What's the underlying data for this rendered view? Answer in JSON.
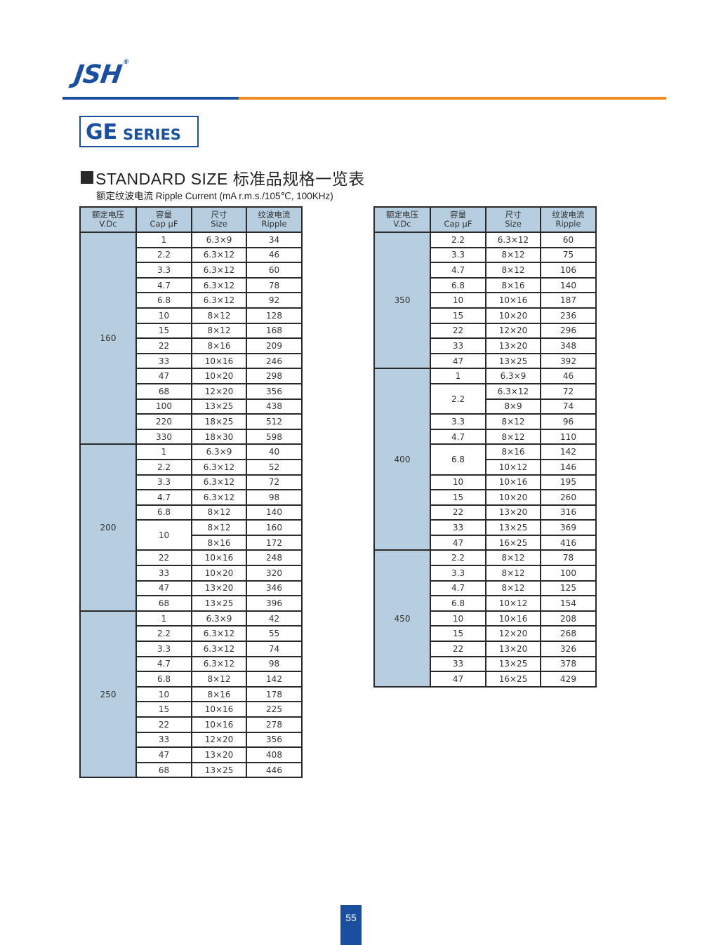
{
  "brand": {
    "logo": "JSH",
    "registered": "®"
  },
  "colors": {
    "brand_blue": "#1a4fa0",
    "accent_orange": "#f08a1c",
    "cell_fill": "#b6cedf"
  },
  "series": {
    "main": "GE",
    "suffix": "SERIES"
  },
  "heading": {
    "title": "STANDARD SIZE 标准品规格一览表",
    "subtitle": "额定纹波电流  Ripple Current (mA r.m.s./105℃, 100KHz)"
  },
  "headers": [
    {
      "cn": "额定电压",
      "en": "V.Dc"
    },
    {
      "cn": "容量",
      "en": "Cap μF"
    },
    {
      "cn": "尺寸",
      "en": "Size"
    },
    {
      "cn": "纹波电流",
      "en": "Ripple"
    }
  ],
  "tables": [
    {
      "groups": [
        {
          "voltage": "160",
          "caps": [
            {
              "cap": "1",
              "items": [
                {
                  "size": "6.3×9",
                  "ripple": "34"
                }
              ]
            },
            {
              "cap": "2.2",
              "items": [
                {
                  "size": "6.3×12",
                  "ripple": "46"
                }
              ]
            },
            {
              "cap": "3.3",
              "items": [
                {
                  "size": "6.3×12",
                  "ripple": "60"
                }
              ]
            },
            {
              "cap": "4.7",
              "items": [
                {
                  "size": "6.3×12",
                  "ripple": "78"
                }
              ]
            },
            {
              "cap": "6.8",
              "items": [
                {
                  "size": "6.3×12",
                  "ripple": "92"
                }
              ]
            },
            {
              "cap": "10",
              "items": [
                {
                  "size": "8×12",
                  "ripple": "128"
                }
              ]
            },
            {
              "cap": "15",
              "items": [
                {
                  "size": "8×12",
                  "ripple": "168"
                }
              ]
            },
            {
              "cap": "22",
              "items": [
                {
                  "size": "8×16",
                  "ripple": "209"
                }
              ]
            },
            {
              "cap": "33",
              "items": [
                {
                  "size": "10×16",
                  "ripple": "246"
                }
              ]
            },
            {
              "cap": "47",
              "items": [
                {
                  "size": "10×20",
                  "ripple": "298"
                }
              ]
            },
            {
              "cap": "68",
              "items": [
                {
                  "size": "12×20",
                  "ripple": "356"
                }
              ]
            },
            {
              "cap": "100",
              "items": [
                {
                  "size": "13×25",
                  "ripple": "438"
                }
              ]
            },
            {
              "cap": "220",
              "items": [
                {
                  "size": "18×25",
                  "ripple": "512"
                }
              ]
            },
            {
              "cap": "330",
              "items": [
                {
                  "size": "18×30",
                  "ripple": "598"
                }
              ]
            }
          ]
        },
        {
          "voltage": "200",
          "caps": [
            {
              "cap": "1",
              "items": [
                {
                  "size": "6.3×9",
                  "ripple": "40"
                }
              ]
            },
            {
              "cap": "2.2",
              "items": [
                {
                  "size": "6.3×12",
                  "ripple": "52"
                }
              ]
            },
            {
              "cap": "3.3",
              "items": [
                {
                  "size": "6.3×12",
                  "ripple": "72"
                }
              ]
            },
            {
              "cap": "4.7",
              "items": [
                {
                  "size": "6.3×12",
                  "ripple": "98"
                }
              ]
            },
            {
              "cap": "6.8",
              "items": [
                {
                  "size": "8×12",
                  "ripple": "140"
                }
              ]
            },
            {
              "cap": "10",
              "items": [
                {
                  "size": "8×12",
                  "ripple": "160"
                },
                {
                  "size": "8×16",
                  "ripple": "172"
                }
              ]
            },
            {
              "cap": "22",
              "items": [
                {
                  "size": "10×16",
                  "ripple": "248"
                }
              ]
            },
            {
              "cap": "33",
              "items": [
                {
                  "size": "10×20",
                  "ripple": "320"
                }
              ]
            },
            {
              "cap": "47",
              "items": [
                {
                  "size": "13×20",
                  "ripple": "346"
                }
              ]
            },
            {
              "cap": "68",
              "items": [
                {
                  "size": "13×25",
                  "ripple": "396"
                }
              ]
            }
          ]
        },
        {
          "voltage": "250",
          "caps": [
            {
              "cap": "1",
              "items": [
                {
                  "size": "6.3×9",
                  "ripple": "42"
                }
              ]
            },
            {
              "cap": "2.2",
              "items": [
                {
                  "size": "6.3×12",
                  "ripple": "55"
                }
              ]
            },
            {
              "cap": "3.3",
              "items": [
                {
                  "size": "6.3×12",
                  "ripple": "74"
                }
              ]
            },
            {
              "cap": "4.7",
              "items": [
                {
                  "size": "6.3×12",
                  "ripple": "98"
                }
              ]
            },
            {
              "cap": "6.8",
              "items": [
                {
                  "size": "8×12",
                  "ripple": "142"
                }
              ]
            },
            {
              "cap": "10",
              "items": [
                {
                  "size": "8×16",
                  "ripple": "178"
                }
              ]
            },
            {
              "cap": "15",
              "items": [
                {
                  "size": "10×16",
                  "ripple": "225"
                }
              ]
            },
            {
              "cap": "22",
              "items": [
                {
                  "size": "10×16",
                  "ripple": "278"
                }
              ]
            },
            {
              "cap": "33",
              "items": [
                {
                  "size": "12×20",
                  "ripple": "356"
                }
              ]
            },
            {
              "cap": "47",
              "items": [
                {
                  "size": "13×20",
                  "ripple": "408"
                }
              ]
            },
            {
              "cap": "68",
              "items": [
                {
                  "size": "13×25",
                  "ripple": "446"
                }
              ]
            }
          ]
        }
      ]
    },
    {
      "groups": [
        {
          "voltage": "350",
          "caps": [
            {
              "cap": "2.2",
              "items": [
                {
                  "size": "6.3×12",
                  "ripple": "60"
                }
              ]
            },
            {
              "cap": "3.3",
              "items": [
                {
                  "size": "8×12",
                  "ripple": "75"
                }
              ]
            },
            {
              "cap": "4.7",
              "items": [
                {
                  "size": "8×12",
                  "ripple": "106"
                }
              ]
            },
            {
              "cap": "6.8",
              "items": [
                {
                  "size": "8×16",
                  "ripple": "140"
                }
              ]
            },
            {
              "cap": "10",
              "items": [
                {
                  "size": "10×16",
                  "ripple": "187"
                }
              ]
            },
            {
              "cap": "15",
              "items": [
                {
                  "size": "10×20",
                  "ripple": "236"
                }
              ]
            },
            {
              "cap": "22",
              "items": [
                {
                  "size": "12×20",
                  "ripple": "296"
                }
              ]
            },
            {
              "cap": "33",
              "items": [
                {
                  "size": "13×20",
                  "ripple": "348"
                }
              ]
            },
            {
              "cap": "47",
              "items": [
                {
                  "size": "13×25",
                  "ripple": "392"
                }
              ]
            }
          ]
        },
        {
          "voltage": "400",
          "caps": [
            {
              "cap": "1",
              "items": [
                {
                  "size": "6.3×9",
                  "ripple": "46"
                }
              ]
            },
            {
              "cap": "2.2",
              "items": [
                {
                  "size": "6.3×12",
                  "ripple": "72"
                },
                {
                  "size": "8×9",
                  "ripple": "74"
                }
              ]
            },
            {
              "cap": "3.3",
              "items": [
                {
                  "size": "8×12",
                  "ripple": "96"
                }
              ]
            },
            {
              "cap": "4.7",
              "items": [
                {
                  "size": "8×12",
                  "ripple": "110"
                }
              ]
            },
            {
              "cap": "6.8",
              "items": [
                {
                  "size": "8×16",
                  "ripple": "142"
                },
                {
                  "size": "10×12",
                  "ripple": "146"
                }
              ]
            },
            {
              "cap": "10",
              "items": [
                {
                  "size": "10×16",
                  "ripple": "195"
                }
              ]
            },
            {
              "cap": "15",
              "items": [
                {
                  "size": "10×20",
                  "ripple": "260"
                }
              ]
            },
            {
              "cap": "22",
              "items": [
                {
                  "size": "13×20",
                  "ripple": "316"
                }
              ]
            },
            {
              "cap": "33",
              "items": [
                {
                  "size": "13×25",
                  "ripple": "369"
                }
              ]
            },
            {
              "cap": "47",
              "items": [
                {
                  "size": "16×25",
                  "ripple": "416"
                }
              ]
            }
          ]
        },
        {
          "voltage": "450",
          "caps": [
            {
              "cap": "2.2",
              "items": [
                {
                  "size": "8×12",
                  "ripple": "78"
                }
              ]
            },
            {
              "cap": "3.3",
              "items": [
                {
                  "size": "8×12",
                  "ripple": "100"
                }
              ]
            },
            {
              "cap": "4.7",
              "items": [
                {
                  "size": "8×12",
                  "ripple": "125"
                }
              ]
            },
            {
              "cap": "6.8",
              "items": [
                {
                  "size": "10×12",
                  "ripple": "154"
                }
              ]
            },
            {
              "cap": "10",
              "items": [
                {
                  "size": "10×16",
                  "ripple": "208"
                }
              ]
            },
            {
              "cap": "15",
              "items": [
                {
                  "size": "12×20",
                  "ripple": "268"
                }
              ]
            },
            {
              "cap": "22",
              "items": [
                {
                  "size": "13×20",
                  "ripple": "326"
                }
              ]
            },
            {
              "cap": "33",
              "items": [
                {
                  "size": "13×25",
                  "ripple": "378"
                }
              ]
            },
            {
              "cap": "47",
              "items": [
                {
                  "size": "16×25",
                  "ripple": "429"
                }
              ]
            }
          ]
        }
      ]
    }
  ],
  "page_number": "55"
}
